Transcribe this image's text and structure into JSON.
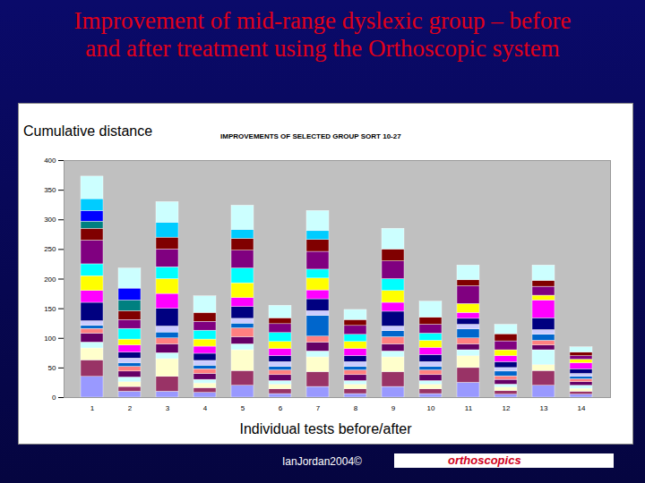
{
  "chart_data": {
    "type": "bar",
    "title": "Improvement of mid-range dyslexic group – before and after treatment using the Orthoscopic system",
    "subtitle": "IMPROVEMENTS OF SELECTED GROUP SORT 10-27",
    "y_label": "Cumulative distance",
    "x_label": "Individual tests before/after",
    "footer": "IanJordan2004©",
    "logo": "orthoscopics",
    "stacked": true,
    "grid": false,
    "categories": [
      "1",
      "2",
      "3",
      "4",
      "5",
      "6",
      "7",
      "8",
      "9",
      "10",
      "11",
      "12",
      "13",
      "14"
    ],
    "ylim": [
      0,
      400
    ],
    "yticks": [
      0,
      50,
      100,
      150,
      200,
      250,
      300,
      350,
      400
    ],
    "series": [
      {
        "color": "#9999ff",
        "values": [
          35,
          10,
          10,
          8,
          20,
          6,
          18,
          6,
          18,
          6,
          25,
          5,
          20,
          5
        ]
      },
      {
        "color": "#993366",
        "values": [
          28,
          8,
          25,
          8,
          25,
          8,
          25,
          8,
          25,
          8,
          25,
          6,
          25,
          5
        ]
      },
      {
        "color": "#ffffcc",
        "values": [
          20,
          8,
          30,
          8,
          35,
          8,
          25,
          8,
          25,
          8,
          20,
          6,
          10,
          5
        ]
      },
      {
        "color": "#ccffff",
        "values": [
          10,
          8,
          10,
          6,
          10,
          6,
          10,
          6,
          10,
          6,
          10,
          5,
          25,
          5
        ]
      },
      {
        "color": "#660066",
        "values": [
          15,
          10,
          15,
          10,
          12,
          10,
          15,
          10,
          12,
          10,
          10,
          8,
          8,
          6
        ]
      },
      {
        "color": "#ff8080",
        "values": [
          8,
          8,
          10,
          8,
          15,
          8,
          10,
          8,
          12,
          8,
          10,
          6,
          8,
          5
        ]
      },
      {
        "color": "#0066cc",
        "values": [
          5,
          6,
          10,
          6,
          8,
          6,
          35,
          6,
          10,
          6,
          15,
          8,
          10,
          4
        ]
      },
      {
        "color": "#ccccff",
        "values": [
          8,
          8,
          10,
          8,
          8,
          8,
          8,
          8,
          8,
          8,
          8,
          6,
          8,
          5
        ]
      },
      {
        "color": "#000080",
        "values": [
          31,
          10,
          30,
          12,
          20,
          10,
          20,
          10,
          25,
          12,
          10,
          10,
          20,
          8
        ]
      },
      {
        "color": "#ff00ff",
        "values": [
          20,
          12,
          25,
          12,
          15,
          12,
          15,
          12,
          15,
          12,
          10,
          10,
          30,
          10
        ]
      },
      {
        "color": "#ffff00",
        "values": [
          25,
          10,
          25,
          12,
          25,
          12,
          20,
          12,
          20,
          12,
          15,
          10,
          8,
          6
        ]
      },
      {
        "color": "#00ffff",
        "values": [
          20,
          18,
          20,
          15,
          25,
          15,
          15,
          12,
          20,
          12,
          0,
          0,
          0,
          0
        ]
      },
      {
        "color": "#800080",
        "values": [
          40,
          15,
          30,
          15,
          30,
          15,
          30,
          15,
          30,
          15,
          30,
          15,
          15,
          6
        ]
      },
      {
        "color": "#800000",
        "values": [
          20,
          15,
          20,
          15,
          20,
          10,
          20,
          10,
          20,
          12,
          10,
          12,
          10,
          6
        ]
      },
      {
        "color": "#008080",
        "values": [
          12,
          18,
          0,
          0,
          0,
          0,
          0,
          0,
          0,
          0,
          0,
          0,
          0,
          0
        ]
      },
      {
        "color": "#0000ff",
        "values": [
          18,
          20,
          0,
          0,
          0,
          0,
          0,
          0,
          0,
          0,
          0,
          0,
          0,
          0
        ]
      },
      {
        "color": "#00ccff",
        "values": [
          20,
          0,
          25,
          0,
          15,
          0,
          15,
          0,
          0,
          0,
          0,
          0,
          0,
          0
        ]
      },
      {
        "color": "#ccffff",
        "values": [
          38,
          34,
          35,
          28,
          41,
          21,
          34,
          17,
          35,
          27,
          25,
          16,
          26,
          9
        ]
      }
    ]
  }
}
